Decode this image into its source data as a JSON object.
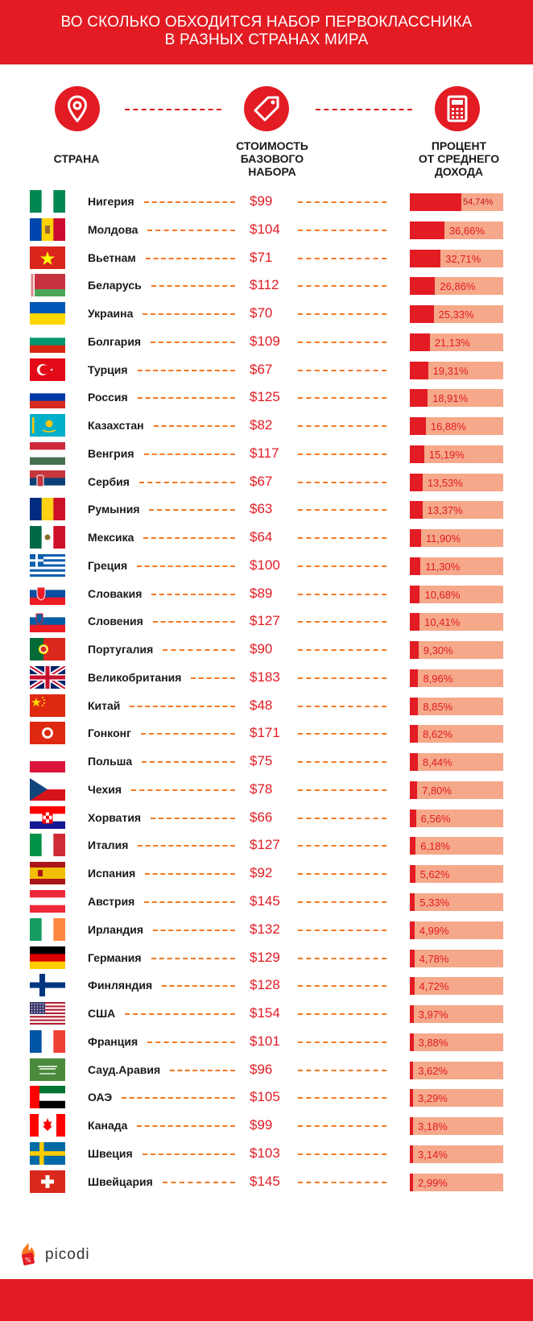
{
  "header": {
    "title_line1": "ВО СКОЛЬКО ОБХОДИТСЯ НАБОР ПЕРВОКЛАССНИКА",
    "title_line2": "В РАЗНЫХ СТРАНАХ МИРА"
  },
  "columns": {
    "country": "СТРАНА",
    "cost_l1": "СТОИМОСТЬ",
    "cost_l2": "БАЗОВОГО",
    "cost_l3": "НАБОРА",
    "pct_l1": "ПРОЦЕНТ",
    "pct_l2": "ОТ СРЕДНЕГО",
    "pct_l3": "ДОХОДА"
  },
  "icons": {
    "col1": "location-pin-icon",
    "col2": "price-tag-icon",
    "col3": "calculator-icon"
  },
  "brand": {
    "name": "picodi",
    "red": "#e31b23",
    "bar_bg": "#f5a88a",
    "dash": "#f47920"
  },
  "chart_data": {
    "type": "table",
    "columns": [
      "СТРАНА",
      "СТОИМОСТЬ БАЗОВОГО НАБОРА",
      "ПРОЦЕНТ ОТ СРЕДНЕГО ДОХОДА"
    ],
    "rows": [
      {
        "country": "Нигерия",
        "flag": "nigeria",
        "price": "$99",
        "pct_label": "54,74%",
        "pct": 54.74
      },
      {
        "country": "Молдова",
        "flag": "moldova",
        "price": "$104",
        "pct_label": "36,66%",
        "pct": 36.66
      },
      {
        "country": "Вьетнам",
        "flag": "vietnam",
        "price": "$71",
        "pct_label": "32,71%",
        "pct": 32.71
      },
      {
        "country": "Беларусь",
        "flag": "belarus",
        "price": "$112",
        "pct_label": "26,86%",
        "pct": 26.86
      },
      {
        "country": "Украина",
        "flag": "ukraine",
        "price": "$70",
        "pct_label": "25,33%",
        "pct": 25.33
      },
      {
        "country": "Болгария",
        "flag": "bulgaria",
        "price": "$109",
        "pct_label": "21,13%",
        "pct": 21.13
      },
      {
        "country": "Турция",
        "flag": "turkey",
        "price": "$67",
        "pct_label": "19,31%",
        "pct": 19.31
      },
      {
        "country": "Россия",
        "flag": "russia",
        "price": "$125",
        "pct_label": "18,91%",
        "pct": 18.91
      },
      {
        "country": "Казахстан",
        "flag": "kazakhstan",
        "price": "$82",
        "pct_label": "16,88%",
        "pct": 16.88
      },
      {
        "country": "Венгрия",
        "flag": "hungary",
        "price": "$117",
        "pct_label": "15,19%",
        "pct": 15.19
      },
      {
        "country": "Сербия",
        "flag": "serbia",
        "price": "$67",
        "pct_label": "13,53%",
        "pct": 13.53
      },
      {
        "country": "Румыния",
        "flag": "romania",
        "price": "$63",
        "pct_label": "13,37%",
        "pct": 13.37
      },
      {
        "country": "Мексика",
        "flag": "mexico",
        "price": "$64",
        "pct_label": "11,90%",
        "pct": 11.9
      },
      {
        "country": "Греция",
        "flag": "greece",
        "price": "$100",
        "pct_label": "11,30%",
        "pct": 11.3
      },
      {
        "country": "Словакия",
        "flag": "slovakia",
        "price": "$89",
        "pct_label": "10,68%",
        "pct": 10.68
      },
      {
        "country": "Словения",
        "flag": "slovenia",
        "price": "$127",
        "pct_label": "10,41%",
        "pct": 10.41
      },
      {
        "country": "Португалия",
        "flag": "portugal",
        "price": "$90",
        "pct_label": "9,30%",
        "pct": 9.3
      },
      {
        "country": "Великобритания",
        "flag": "uk",
        "price": "$183",
        "pct_label": "8,96%",
        "pct": 8.96
      },
      {
        "country": "Китай",
        "flag": "china",
        "price": "$48",
        "pct_label": "8,85%",
        "pct": 8.85
      },
      {
        "country": "Гонконг",
        "flag": "hongkong",
        "price": "$171",
        "pct_label": "8,62%",
        "pct": 8.62
      },
      {
        "country": "Польша",
        "flag": "poland",
        "price": "$75",
        "pct_label": "8,44%",
        "pct": 8.44
      },
      {
        "country": "Чехия",
        "flag": "czech",
        "price": "$78",
        "pct_label": "7,80%",
        "pct": 7.8
      },
      {
        "country": "Хорватия",
        "flag": "croatia",
        "price": "$66",
        "pct_label": "6,56%",
        "pct": 6.56
      },
      {
        "country": "Италия",
        "flag": "italy",
        "price": "$127",
        "pct_label": "6,18%",
        "pct": 6.18
      },
      {
        "country": "Испания",
        "flag": "spain",
        "price": "$92",
        "pct_label": "5,62%",
        "pct": 5.62
      },
      {
        "country": "Австрия",
        "flag": "austria",
        "price": "$145",
        "pct_label": "5,33%",
        "pct": 5.33
      },
      {
        "country": "Ирландия",
        "flag": "ireland",
        "price": "$132",
        "pct_label": "4,99%",
        "pct": 4.99
      },
      {
        "country": "Германия",
        "flag": "germany",
        "price": "$129",
        "pct_label": "4,78%",
        "pct": 4.78
      },
      {
        "country": "Финляндия",
        "flag": "finland",
        "price": "$128",
        "pct_label": "4,72%",
        "pct": 4.72
      },
      {
        "country": "США",
        "flag": "usa",
        "price": "$154",
        "pct_label": "3,97%",
        "pct": 3.97
      },
      {
        "country": "Франция",
        "flag": "france",
        "price": "$101",
        "pct_label": "3,88%",
        "pct": 3.88
      },
      {
        "country": "Сауд.Аравия",
        "flag": "saudi",
        "price": "$96",
        "pct_label": "3,62%",
        "pct": 3.62
      },
      {
        "country": "ОАЭ",
        "flag": "uae",
        "price": "$105",
        "pct_label": "3,29%",
        "pct": 3.29
      },
      {
        "country": "Канада",
        "flag": "canada",
        "price": "$99",
        "pct_label": "3,18%",
        "pct": 3.18
      },
      {
        "country": "Швеция",
        "flag": "sweden",
        "price": "$103",
        "pct_label": "3,14%",
        "pct": 3.14
      },
      {
        "country": "Швейцария",
        "flag": "switzerland",
        "price": "$145",
        "pct_label": "2,99%",
        "pct": 2.99
      }
    ]
  }
}
